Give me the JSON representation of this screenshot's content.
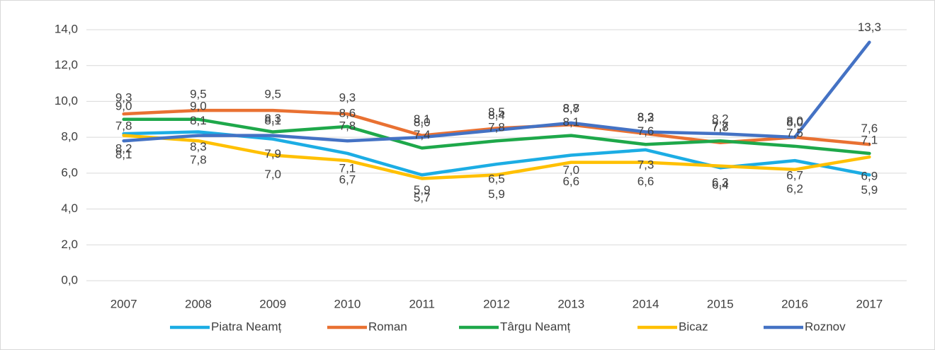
{
  "chart_data": {
    "type": "line",
    "x": [
      "2007",
      "2008",
      "2009",
      "2010",
      "2011",
      "2012",
      "2013",
      "2014",
      "2015",
      "2016",
      "2017"
    ],
    "ylim": [
      0,
      14
    ],
    "yticks": [
      {
        "value": 0,
        "label": "0,0"
      },
      {
        "value": 2,
        "label": "2,0"
      },
      {
        "value": 4,
        "label": "4,0"
      },
      {
        "value": 6,
        "label": "6,0"
      },
      {
        "value": 8,
        "label": "8,0"
      },
      {
        "value": 10,
        "label": "10,0"
      },
      {
        "value": 12,
        "label": "12,0"
      },
      {
        "value": 14,
        "label": "14,0"
      }
    ],
    "grid": true,
    "legend": "bottom",
    "series": [
      {
        "name": "Piatra Neamț",
        "color": "#1cade4",
        "values": [
          8.2,
          8.3,
          7.9,
          7.1,
          5.9,
          6.5,
          7.0,
          7.3,
          6.3,
          6.7,
          5.9
        ],
        "value_labels": [
          "8,2",
          "8,3",
          "7,9",
          "7,1",
          "5,9",
          "6,5",
          "7,0",
          "7,3",
          "6,3",
          "6,7",
          "5,9"
        ]
      },
      {
        "name": "Roman",
        "color": "#e97132",
        "values": [
          9.3,
          9.5,
          9.5,
          9.3,
          8.1,
          8.5,
          8.7,
          8.2,
          7.7,
          8.0,
          7.6
        ],
        "value_labels": [
          "9,3",
          "9,5",
          "9,5",
          "9,3",
          "8,1",
          "8,5",
          "8,7",
          "8,2",
          "7,7",
          "8,0",
          "7,6"
        ]
      },
      {
        "name": "Târgu Neamț",
        "color": "#1ea84a",
        "values": [
          9.0,
          9.0,
          8.3,
          8.6,
          7.4,
          7.8,
          8.1,
          7.6,
          7.8,
          7.5,
          7.1
        ],
        "value_labels": [
          "9,0",
          "9,0",
          "8,3",
          "8,6",
          "7,4",
          "7,8",
          "8,1",
          "7,6",
          "7,8",
          "7,5",
          "7,1"
        ]
      },
      {
        "name": "Bicaz",
        "color": "#ffc000",
        "values": [
          8.1,
          7.8,
          7.0,
          6.7,
          5.7,
          5.9,
          6.6,
          6.6,
          6.4,
          6.2,
          6.9
        ],
        "value_labels": [
          "8,1",
          "7,8",
          "7,0",
          "6,7",
          "5,7",
          "5,9",
          "6,6",
          "6,6",
          "6,4",
          "6,2",
          "6,9"
        ]
      },
      {
        "name": "Roznov",
        "color": "#4472c4",
        "values": [
          7.8,
          8.1,
          8.1,
          7.8,
          8.0,
          8.4,
          8.8,
          8.3,
          8.2,
          8.0,
          13.3
        ],
        "value_labels": [
          "7,8",
          "8,1",
          "8,1",
          "7,8",
          "8,0",
          "8,4",
          "8,8",
          "8,3",
          "8,2",
          "8,0",
          "13,3"
        ]
      }
    ]
  }
}
